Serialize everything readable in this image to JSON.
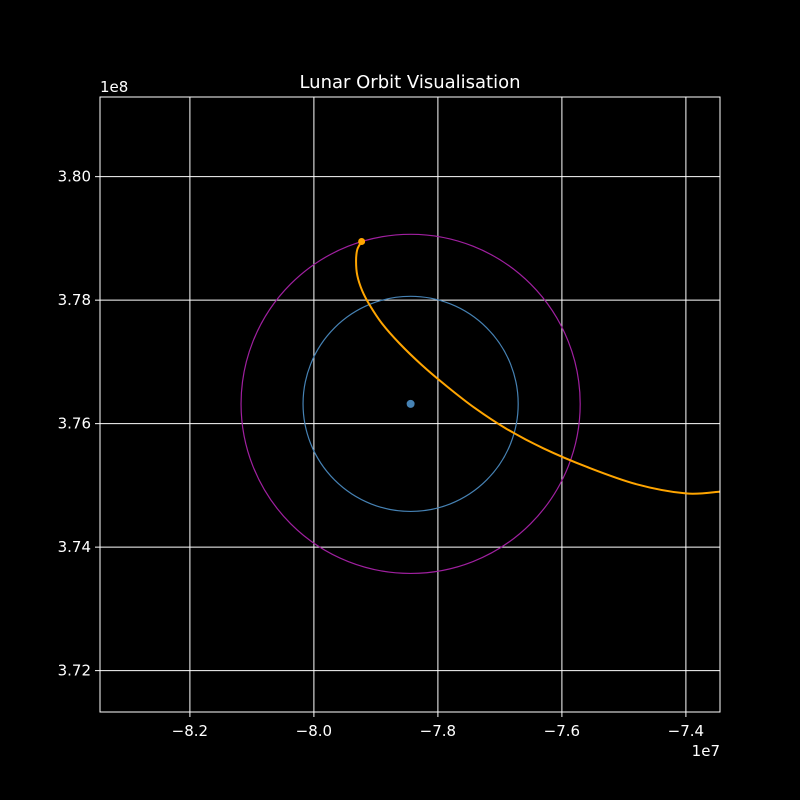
{
  "chart_data": {
    "type": "line",
    "title": "Lunar Orbit Visualisation",
    "xlabel": "",
    "ylabel": "",
    "x_offset_text": "1e7",
    "y_offset_text": "1e8",
    "xlim": [
      -8.345,
      -7.345
    ],
    "ylim": [
      3.7133,
      3.8129
    ],
    "x_ticks": [
      -8.2,
      -8.0,
      -7.8,
      -7.6,
      -7.4
    ],
    "x_tick_labels": [
      "−8.2",
      "−8.0",
      "−7.8",
      "−7.6",
      "−7.4"
    ],
    "y_ticks": [
      3.72,
      3.74,
      3.76,
      3.78,
      3.8
    ],
    "y_tick_labels": [
      "3.72",
      "3.74",
      "3.76",
      "3.78",
      "3.80"
    ],
    "grid": true,
    "legend": "none",
    "center_point": {
      "x": -7.844,
      "y": 3.7632,
      "color": "#4682b4"
    },
    "circles": [
      {
        "name": "inner circle",
        "cx": -7.844,
        "cy": 3.7632,
        "radius": 0.1735,
        "color": "#4682b4"
      },
      {
        "name": "outer circle",
        "cx": -7.844,
        "cy": 3.7632,
        "radius": 0.2735,
        "color": "#a020a0"
      }
    ],
    "series": [
      {
        "color": "#ffa500",
        "x": [
          -7.923,
          -7.93,
          -7.932,
          -7.93,
          -7.922,
          -7.91,
          -7.89,
          -7.862,
          -7.826,
          -7.785,
          -7.74,
          -7.69,
          -7.63,
          -7.56,
          -7.48,
          -7.4,
          -7.345
        ],
        "y": [
          3.7895,
          3.7882,
          3.7863,
          3.784,
          3.7815,
          3.7792,
          3.7762,
          3.773,
          3.7695,
          3.766,
          3.7625,
          3.7592,
          3.756,
          3.753,
          3.7502,
          3.7487,
          3.749
        ]
      }
    ],
    "end_point": {
      "x": -7.923,
      "y": 3.7895,
      "color": "#ffa500"
    }
  }
}
